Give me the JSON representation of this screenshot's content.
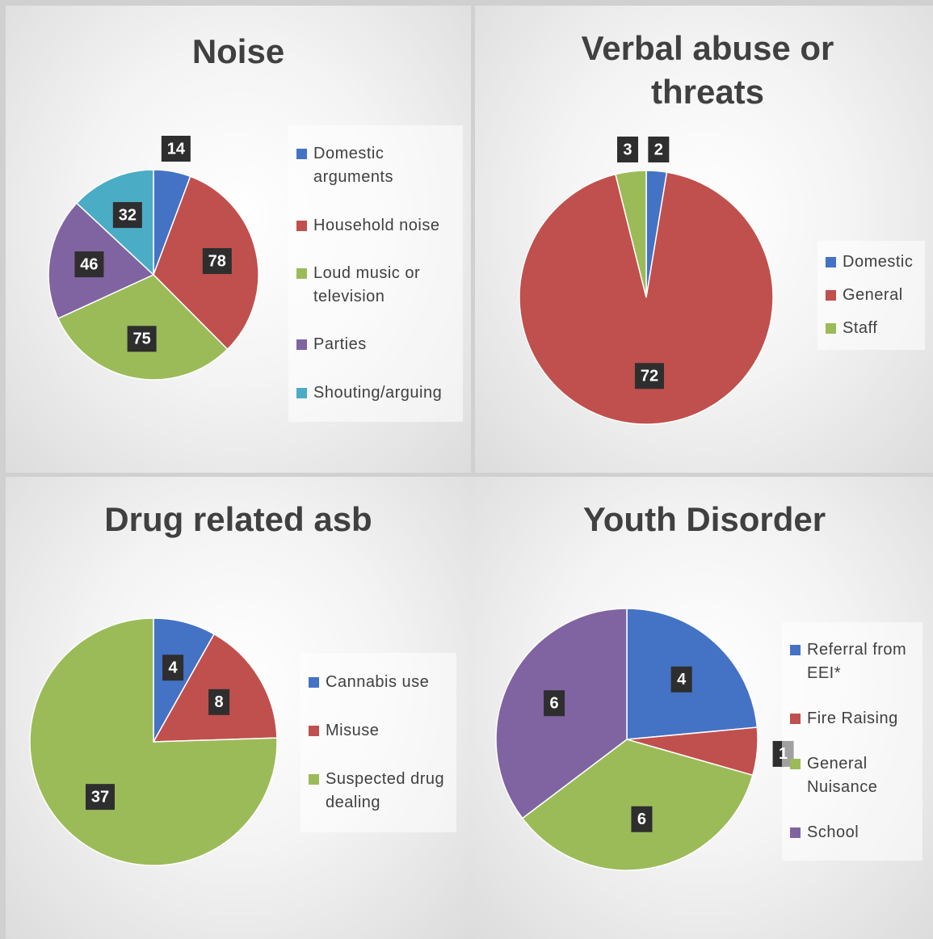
{
  "chart_data": [
    {
      "type": "pie",
      "title": "Noise",
      "categories": [
        "Domestic arguments",
        "Household noise",
        "Loud music or television",
        "Parties",
        "Shouting/arguing"
      ],
      "values": [
        14,
        78,
        75,
        46,
        32
      ],
      "colors": [
        "#4472c4",
        "#c0504d",
        "#9bbb59",
        "#8064a2",
        "#4bacc6"
      ],
      "legend": "right"
    },
    {
      "type": "pie",
      "title": "Verbal abuse or threats",
      "categories": [
        "Domestic",
        "General",
        "Staff"
      ],
      "values": [
        2,
        72,
        3
      ],
      "colors": [
        "#4472c4",
        "#c0504d",
        "#9bbb59"
      ],
      "legend": "right"
    },
    {
      "type": "pie",
      "title": "Drug related asb",
      "categories": [
        "Cannabis use",
        "Misuse",
        "Suspected drug dealing"
      ],
      "values": [
        4,
        8,
        37
      ],
      "colors": [
        "#4472c4",
        "#c0504d",
        "#9bbb59"
      ],
      "legend": "right"
    },
    {
      "type": "pie",
      "title": "Youth Disorder",
      "categories": [
        "Referral from EEI*",
        "Fire Raising",
        "General Nuisance",
        "School"
      ],
      "values": [
        4,
        1,
        6,
        6
      ],
      "colors": [
        "#4472c4",
        "#c0504d",
        "#9bbb59",
        "#8064a2"
      ],
      "legend": "right"
    }
  ]
}
